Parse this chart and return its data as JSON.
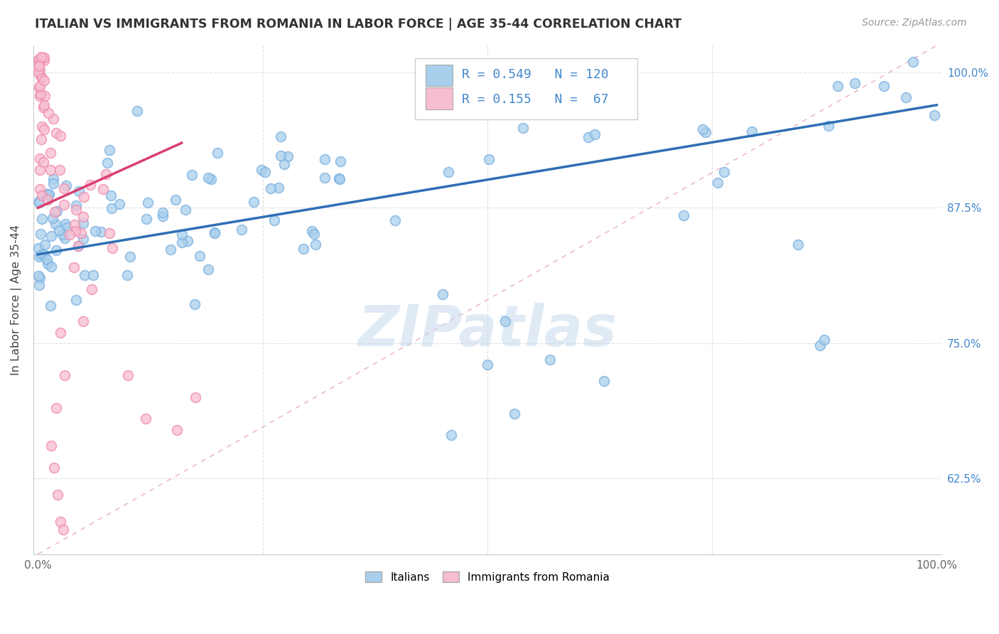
{
  "title": "ITALIAN VS IMMIGRANTS FROM ROMANIA IN LABOR FORCE | AGE 35-44 CORRELATION CHART",
  "source": "Source: ZipAtlas.com",
  "ylabel": "In Labor Force | Age 35-44",
  "xlim": [
    -0.005,
    1.005
  ],
  "ylim": [
    0.555,
    1.025
  ],
  "yticks": [
    0.625,
    0.75,
    0.875,
    1.0
  ],
  "ytick_labels": [
    "62.5%",
    "75.0%",
    "87.5%",
    "100.0%"
  ],
  "blue_R": "0.549",
  "blue_N": "120",
  "pink_R": "0.155",
  "pink_N": "67",
  "blue_fill": "#A8CFEC",
  "blue_edge": "#7AAFE0",
  "pink_fill": "#F7BDD0",
  "pink_edge": "#EE8AAA",
  "blue_line_color": "#2E6FB5",
  "pink_line_color": "#D94070",
  "diag_color": "#E0B0B8",
  "grid_color": "#E0E0E0",
  "watermark": "ZIPatlas",
  "background_color": "#FFFFFF",
  "tick_label_color": "#4488CC",
  "title_color": "#333333",
  "source_color": "#999999"
}
